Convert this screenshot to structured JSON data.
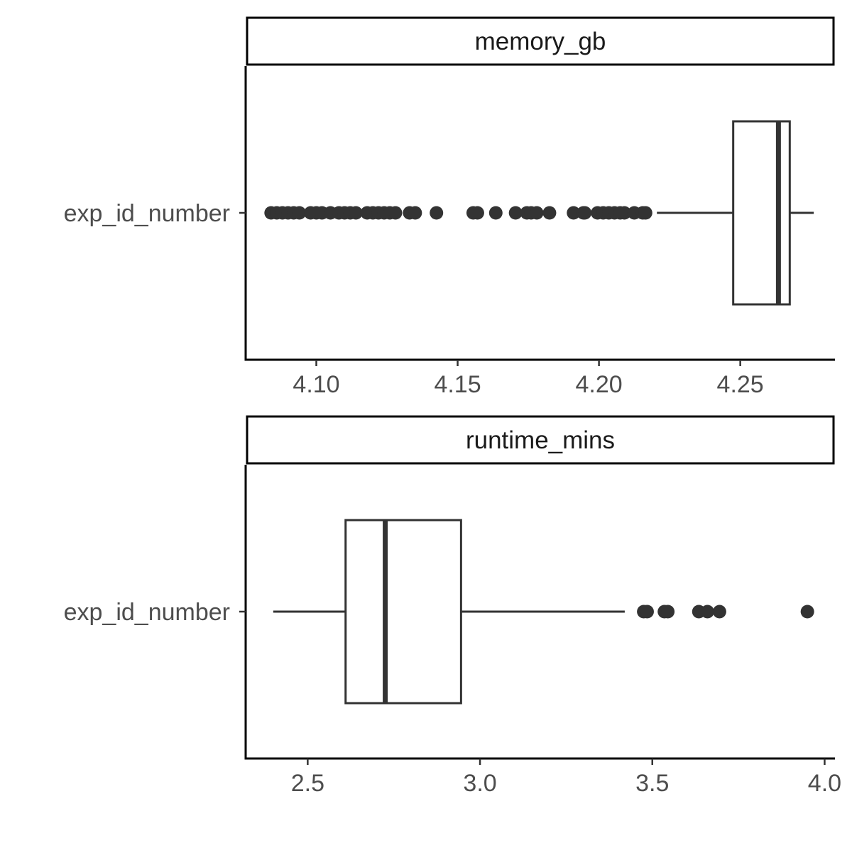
{
  "chart_data": [
    {
      "type": "boxplot",
      "facet": "memory_gb",
      "category": "exp_id_number",
      "xlim": [
        4.075,
        4.2835
      ],
      "ticks": [
        {
          "value": 4.1,
          "label": "4.10"
        },
        {
          "value": 4.15,
          "label": "4.15"
        },
        {
          "value": 4.2,
          "label": "4.20"
        },
        {
          "value": 4.25,
          "label": "4.25"
        }
      ],
      "box": {
        "whisker_low": 4.2205,
        "q1": 4.2475,
        "median": 4.2635,
        "q3": 4.2675,
        "whisker_high": 4.276
      },
      "outliers": [
        4.084,
        4.086,
        4.088,
        4.09,
        4.092,
        4.094,
        4.098,
        4.1,
        4.102,
        4.105,
        4.108,
        4.11,
        4.112,
        4.114,
        4.118,
        4.12,
        4.122,
        4.124,
        4.126,
        4.128,
        4.133,
        4.135,
        4.1425,
        4.1555,
        4.157,
        4.1635,
        4.1705,
        4.1745,
        4.176,
        4.178,
        4.1825,
        4.191,
        4.1945,
        4.195,
        4.1995,
        4.2015,
        4.2035,
        4.2055,
        4.2075,
        4.209,
        4.2125,
        4.2155,
        4.2165
      ]
    },
    {
      "type": "boxplot",
      "facet": "runtime_mins",
      "category": "exp_id_number",
      "xlim": [
        2.32,
        4.03
      ],
      "ticks": [
        {
          "value": 2.5,
          "label": "2.5"
        },
        {
          "value": 3.0,
          "label": "3.0"
        },
        {
          "value": 3.5,
          "label": "3.5"
        },
        {
          "value": 4.0,
          "label": "4.0"
        }
      ],
      "box": {
        "whisker_low": 2.4,
        "q1": 2.61,
        "median": 2.725,
        "q3": 2.945,
        "whisker_high": 3.42
      },
      "outliers": [
        3.475,
        3.485,
        3.535,
        3.545,
        3.635,
        3.66,
        3.695,
        3.95
      ]
    }
  ],
  "style": {
    "axis_color": "#000000",
    "box_color": "#333333",
    "point_color": "#333333",
    "background": "#ffffff"
  }
}
